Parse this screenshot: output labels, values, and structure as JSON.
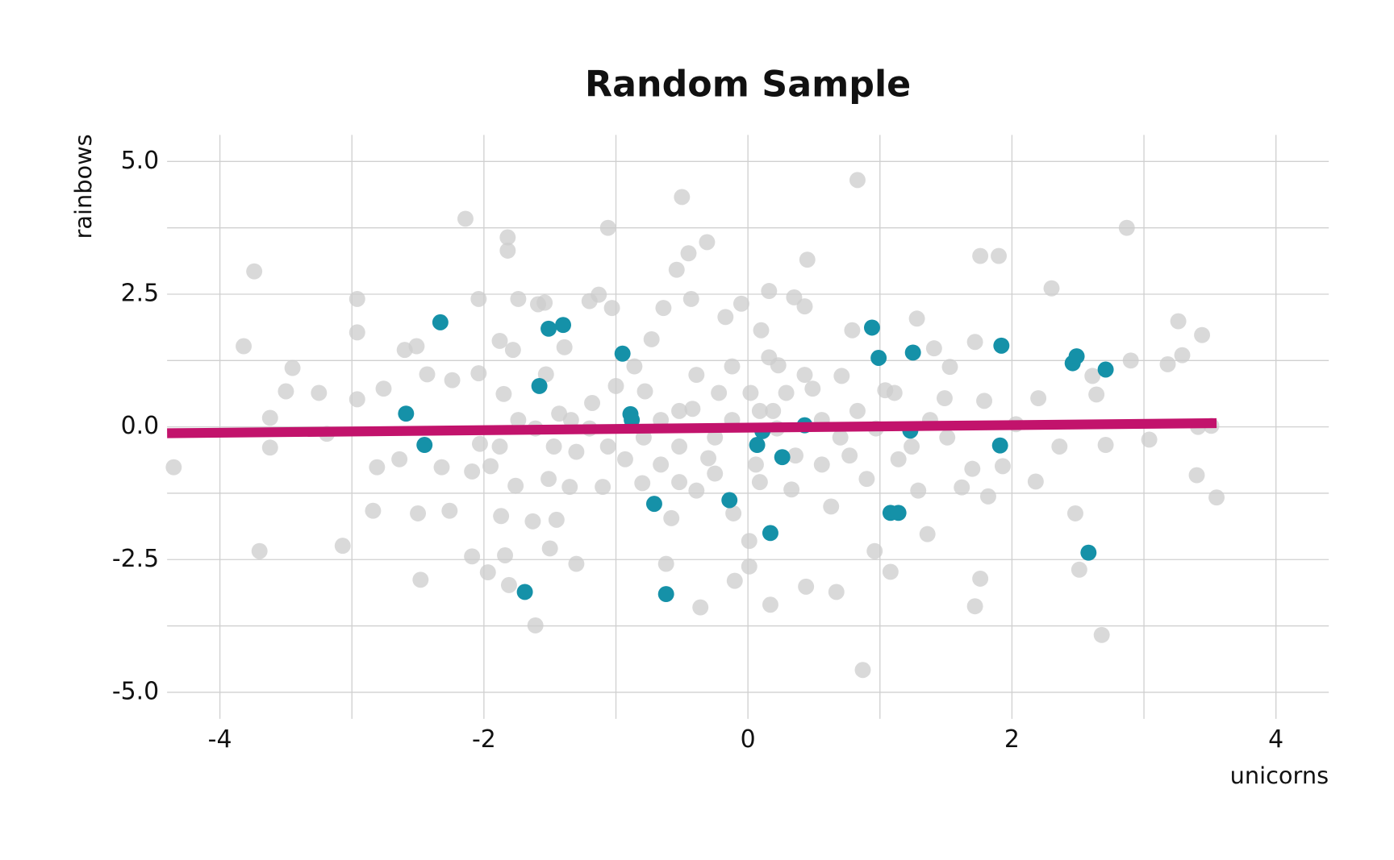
{
  "chart_data": {
    "type": "scatter",
    "title": "Random Sample",
    "xlabel": "unicorns",
    "ylabel": "rainbows",
    "xlim": [
      -4.4,
      4.4
    ],
    "ylim": [
      -5.5,
      5.5
    ],
    "xticks": [
      -4,
      -2,
      0,
      2,
      4
    ],
    "yticks": [
      {
        "value": 5,
        "label": "5.0"
      },
      {
        "value": 2.5,
        "label": "2.5"
      },
      {
        "value": 0,
        "label": "0.0"
      },
      {
        "value": -2.5,
        "label": "-2.5"
      },
      {
        "value": -5,
        "label": "-5.0"
      }
    ],
    "xminorticks": [
      -3,
      -1,
      1,
      3
    ],
    "yminorticks": [
      3.75,
      1.25,
      -1.25,
      -3.75
    ],
    "grid": true,
    "series": [
      {
        "color": "#cccccc",
        "x": [
          -4.35,
          -3.82,
          -3.74,
          -3.7,
          -3.62,
          -3.62,
          -3.5,
          -3.45,
          -3.25,
          -3.19,
          -3.07,
          -2.96,
          -2.96,
          -2.96,
          -2.84,
          -2.81,
          -2.76,
          -2.64,
          -2.6,
          -2.51,
          -2.5,
          -2.48,
          -2.43,
          -2.32,
          -2.26,
          -2.24,
          -2.14,
          -2.09,
          -2.09,
          -2.04,
          -2.04,
          -2.03,
          -1.97,
          -1.95,
          -1.88,
          -1.87,
          -1.85,
          -1.82,
          -1.82,
          -1.84,
          -1.81,
          -1.78,
          -1.76,
          -1.74,
          -1.63,
          -1.61,
          -1.59,
          -1.54,
          -1.53,
          -1.51,
          -1.5,
          -1.45,
          -1.43,
          -1.39,
          -1.35,
          -1.3,
          -1.3,
          -1.2,
          -1.18,
          -1.13,
          -1.1,
          -1.06,
          -1.03,
          -1.0,
          -0.93,
          -0.86,
          -0.8,
          -0.78,
          -0.73,
          -0.66,
          -0.62,
          -0.64,
          -0.58,
          -0.54,
          -0.5,
          -0.45,
          -0.43,
          -0.42,
          -0.39,
          -0.36,
          -0.31,
          -0.3,
          -0.22,
          -0.17,
          -0.11,
          -0.1,
          -0.05,
          0.01,
          0.01,
          0.06,
          0.1,
          0.16,
          0.17,
          0.19,
          0.23,
          0.33,
          0.35,
          0.43,
          0.45,
          0.44,
          0.49,
          0.56,
          0.63,
          0.67,
          0.71,
          0.79,
          0.83,
          0.87,
          0.9,
          0.96,
          1.04,
          1.08,
          1.14,
          1.28,
          1.29,
          1.36,
          1.41,
          1.49,
          1.53,
          1.62,
          1.7,
          1.72,
          1.72,
          1.76,
          1.76,
          1.79,
          1.82,
          1.9,
          1.93,
          2.03,
          2.18,
          2.2,
          2.3,
          2.36,
          2.48,
          2.51,
          2.61,
          2.64,
          2.68,
          2.71,
          2.87,
          2.9,
          3.04,
          3.18,
          3.26,
          3.29,
          3.41,
          3.4,
          3.44,
          3.51,
          3.55,
          0.02,
          0.09,
          0.22,
          -0.12,
          -0.25,
          -0.52,
          -0.39,
          -0.52,
          -0.66,
          -0.79,
          0.29,
          0.43,
          0.56,
          0.7,
          0.83,
          0.97,
          1.11,
          1.24,
          1.38,
          1.51,
          -1.2,
          -1.06,
          -1.34,
          -1.47,
          -1.61,
          -1.74,
          -1.88,
          0.16,
          -0.12,
          0.09,
          -0.25,
          -0.52,
          0.36,
          0.77
        ],
        "values": [
          -0.76,
          1.52,
          2.93,
          -2.34,
          0.17,
          -0.39,
          0.67,
          1.11,
          0.64,
          -0.13,
          -2.24,
          2.41,
          1.78,
          0.52,
          -1.58,
          -0.76,
          0.72,
          -0.61,
          1.45,
          1.52,
          -1.63,
          -2.88,
          0.99,
          -0.76,
          -1.58,
          0.88,
          3.92,
          -0.84,
          -2.44,
          2.41,
          1.01,
          -0.32,
          -2.74,
          -0.74,
          1.62,
          -1.68,
          0.62,
          3.57,
          3.32,
          -2.42,
          -2.98,
          1.45,
          -1.11,
          2.41,
          -1.78,
          -3.74,
          2.31,
          2.34,
          0.99,
          -0.98,
          -2.29,
          -1.75,
          0.25,
          1.5,
          -1.13,
          -2.58,
          -0.47,
          2.37,
          0.45,
          2.49,
          -1.13,
          3.75,
          2.24,
          0.77,
          -0.61,
          1.14,
          -1.06,
          0.67,
          1.65,
          -0.71,
          -2.58,
          2.24,
          -1.72,
          2.96,
          4.33,
          3.27,
          2.41,
          0.34,
          -1.2,
          -3.4,
          3.48,
          -0.59,
          0.64,
          2.07,
          -1.63,
          -2.9,
          2.32,
          -2.63,
          -2.15,
          -0.71,
          1.82,
          2.56,
          -3.35,
          0.3,
          1.16,
          -1.18,
          2.44,
          2.27,
          3.15,
          -3.01,
          0.72,
          -0.71,
          -1.5,
          -3.11,
          0.96,
          1.82,
          4.65,
          -4.58,
          -0.98,
          -2.34,
          0.69,
          -2.73,
          -0.61,
          2.04,
          -1.2,
          -2.02,
          1.48,
          0.54,
          1.13,
          -1.14,
          -0.79,
          1.6,
          -3.38,
          -2.86,
          3.22,
          0.49,
          -1.31,
          3.22,
          -0.74,
          0.05,
          -1.03,
          0.54,
          2.61,
          -0.37,
          -1.63,
          -2.69,
          0.96,
          0.61,
          -3.92,
          -0.34,
          3.75,
          1.25,
          -0.24,
          1.18,
          1.99,
          1.35,
          0.0,
          -0.91,
          1.73,
          0.02,
          -1.33,
          0.64,
          0.3,
          -0.03,
          0.13,
          -0.2,
          0.3,
          0.98,
          -0.37,
          0.13,
          -0.2,
          0.64,
          0.98,
          0.13,
          -0.2,
          0.3,
          -0.03,
          0.64,
          -0.37,
          0.13,
          -0.2,
          -0.03,
          -0.37,
          0.13,
          -0.37,
          -0.03,
          0.13,
          -0.37,
          1.31,
          1.14,
          -1.04,
          -0.88,
          -1.04,
          -0.54,
          -0.54
        ]
      },
      {
        "color": "#1591a8",
        "x": [
          -2.59,
          -2.45,
          -2.33,
          -1.69,
          -1.58,
          -1.51,
          -1.4,
          -0.95,
          -0.89,
          -0.88,
          -0.71,
          -0.62,
          -0.14,
          0.07,
          0.11,
          0.17,
          0.26,
          0.43,
          0.94,
          0.99,
          1.08,
          1.14,
          1.23,
          1.25,
          1.92,
          1.91,
          2.46,
          2.49,
          2.58,
          2.71
        ],
        "values": [
          0.25,
          -0.34,
          1.97,
          -3.11,
          0.77,
          1.85,
          1.92,
          1.38,
          0.24,
          0.13,
          -1.45,
          -3.15,
          -1.38,
          -0.34,
          -0.08,
          -2.0,
          -0.57,
          0.03,
          1.87,
          1.3,
          -1.62,
          -1.62,
          -0.07,
          1.4,
          1.53,
          -0.35,
          1.2,
          1.33,
          -2.37,
          1.08
        ]
      }
    ],
    "trend": {
      "color": "#c2136c",
      "x": [
        -4.4,
        3.55
      ],
      "values": [
        -0.12,
        0.07
      ]
    }
  }
}
